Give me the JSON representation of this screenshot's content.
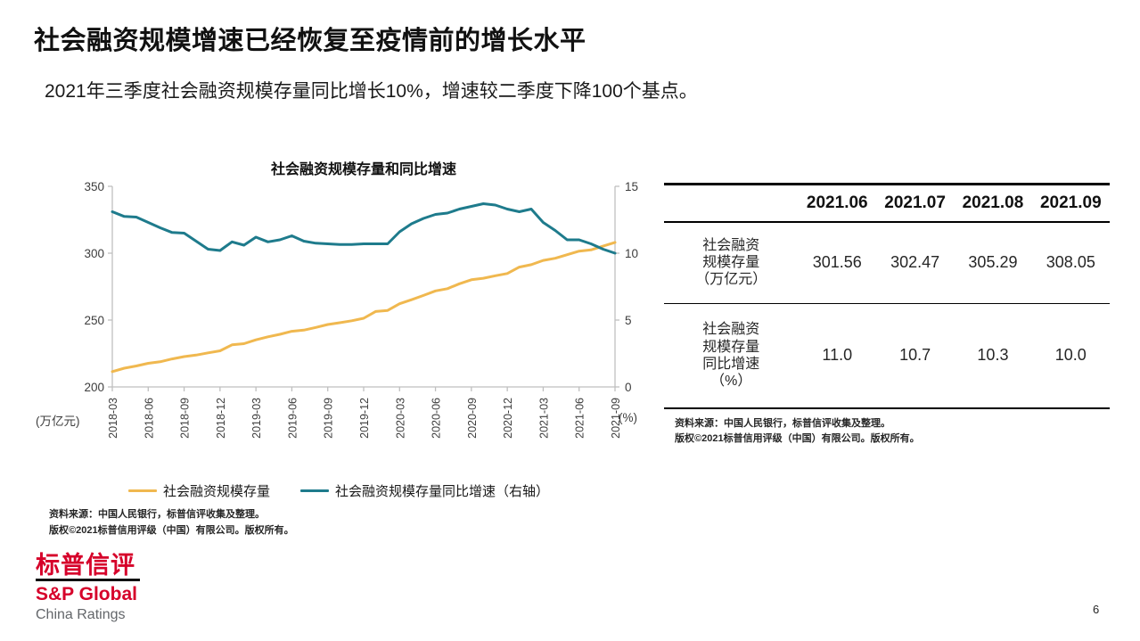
{
  "page": {
    "title": "社会融资规模增速已经恢复至疫情前的增长水平",
    "subtitle": "2021年三季度社会融资规模存量同比增长10%，增速较二季度下降100个基点。",
    "page_number": "6"
  },
  "chart_data": {
    "type": "line",
    "title": "社会融资规模存量和同比增速",
    "x": [
      "2018-03",
      "2018-04",
      "2018-05",
      "2018-06",
      "2018-07",
      "2018-08",
      "2018-09",
      "2018-10",
      "2018-11",
      "2018-12",
      "2019-01",
      "2019-02",
      "2019-03",
      "2019-04",
      "2019-05",
      "2019-06",
      "2019-07",
      "2019-08",
      "2019-09",
      "2019-10",
      "2019-11",
      "2019-12",
      "2020-01",
      "2020-02",
      "2020-03",
      "2020-04",
      "2020-05",
      "2020-06",
      "2020-07",
      "2020-08",
      "2020-09",
      "2020-10",
      "2020-11",
      "2020-12",
      "2021-01",
      "2021-02",
      "2021-03",
      "2021-04",
      "2021-05",
      "2021-06",
      "2021-07",
      "2021-08",
      "2021-09"
    ],
    "x_tick_step": 3,
    "left_axis": {
      "label": "(万亿元)",
      "ticks": [
        350,
        300,
        250,
        200
      ],
      "range": [
        200,
        350
      ]
    },
    "right_axis": {
      "label": "(%)",
      "ticks": [
        15,
        10,
        5,
        0
      ],
      "range": [
        0,
        15
      ]
    },
    "grid": "off",
    "legend_position": "bottom",
    "series": [
      {
        "name": "社会融资规模存量",
        "axis": "left",
        "color": "#f0b84f",
        "values": [
          211.5,
          214.0,
          215.7,
          217.7,
          218.8,
          220.9,
          222.7,
          223.8,
          225.5,
          227.0,
          231.5,
          232.3,
          235.2,
          237.5,
          239.3,
          241.6,
          242.5,
          244.5,
          246.7,
          248.0,
          249.5,
          251.3,
          256.4,
          257.2,
          262.2,
          265.2,
          268.4,
          271.8,
          273.5,
          277.1,
          280.1,
          281.3,
          283.1,
          284.8,
          289.6,
          291.4,
          294.6,
          296.2,
          298.9,
          301.56,
          302.47,
          305.29,
          308.05
        ]
      },
      {
        "name": "社会融资规模存量同比增速（右轴）",
        "axis": "right",
        "color": "#1e7b8c",
        "values": [
          13.1,
          12.75,
          12.7,
          12.3,
          11.9,
          11.55,
          11.5,
          10.9,
          10.3,
          10.2,
          10.85,
          10.6,
          11.2,
          10.85,
          11.0,
          11.3,
          10.9,
          10.75,
          10.7,
          10.65,
          10.65,
          10.7,
          10.7,
          10.7,
          11.6,
          12.2,
          12.6,
          12.9,
          13.0,
          13.3,
          13.5,
          13.7,
          13.6,
          13.3,
          13.1,
          13.3,
          12.3,
          11.7,
          11.0,
          11.0,
          10.7,
          10.3,
          10.0
        ]
      }
    ]
  },
  "chart_notes": [
    "资料来源：中国人民银行，标普信评收集及整理。",
    "版权©2021标普信用评级（中国）有限公司。版权所有。"
  ],
  "table": {
    "headers": [
      "2021.06",
      "2021.07",
      "2021.08",
      "2021.09"
    ],
    "rows": [
      {
        "label": "社会融资规模存量（万亿元）",
        "label_lines": [
          "社会融资",
          "规模存量",
          "（万亿元）"
        ],
        "values": [
          "301.56",
          "302.47",
          "305.29",
          "308.05"
        ]
      },
      {
        "label": "社会融资规模存量同比增速（%）",
        "label_lines": [
          "社会融资",
          "规模存量",
          "同比增速",
          "（%）"
        ],
        "values": [
          "11.0",
          "10.7",
          "10.3",
          "10.0"
        ]
      }
    ],
    "notes": [
      "资料来源：中国人民银行，标普信评收集及整理。",
      "版权©2021标普信用评级（中国）有限公司。版权所有。"
    ]
  },
  "logo": {
    "cn_name": "标普信评",
    "en_name": "S&P Global",
    "sub_name": "China Ratings"
  },
  "colors": {
    "brand_red": "#d6002a",
    "axis_gray": "#bfbfbf",
    "stock_yellow": "#f0b84f",
    "growth_teal": "#1e7b8c"
  }
}
